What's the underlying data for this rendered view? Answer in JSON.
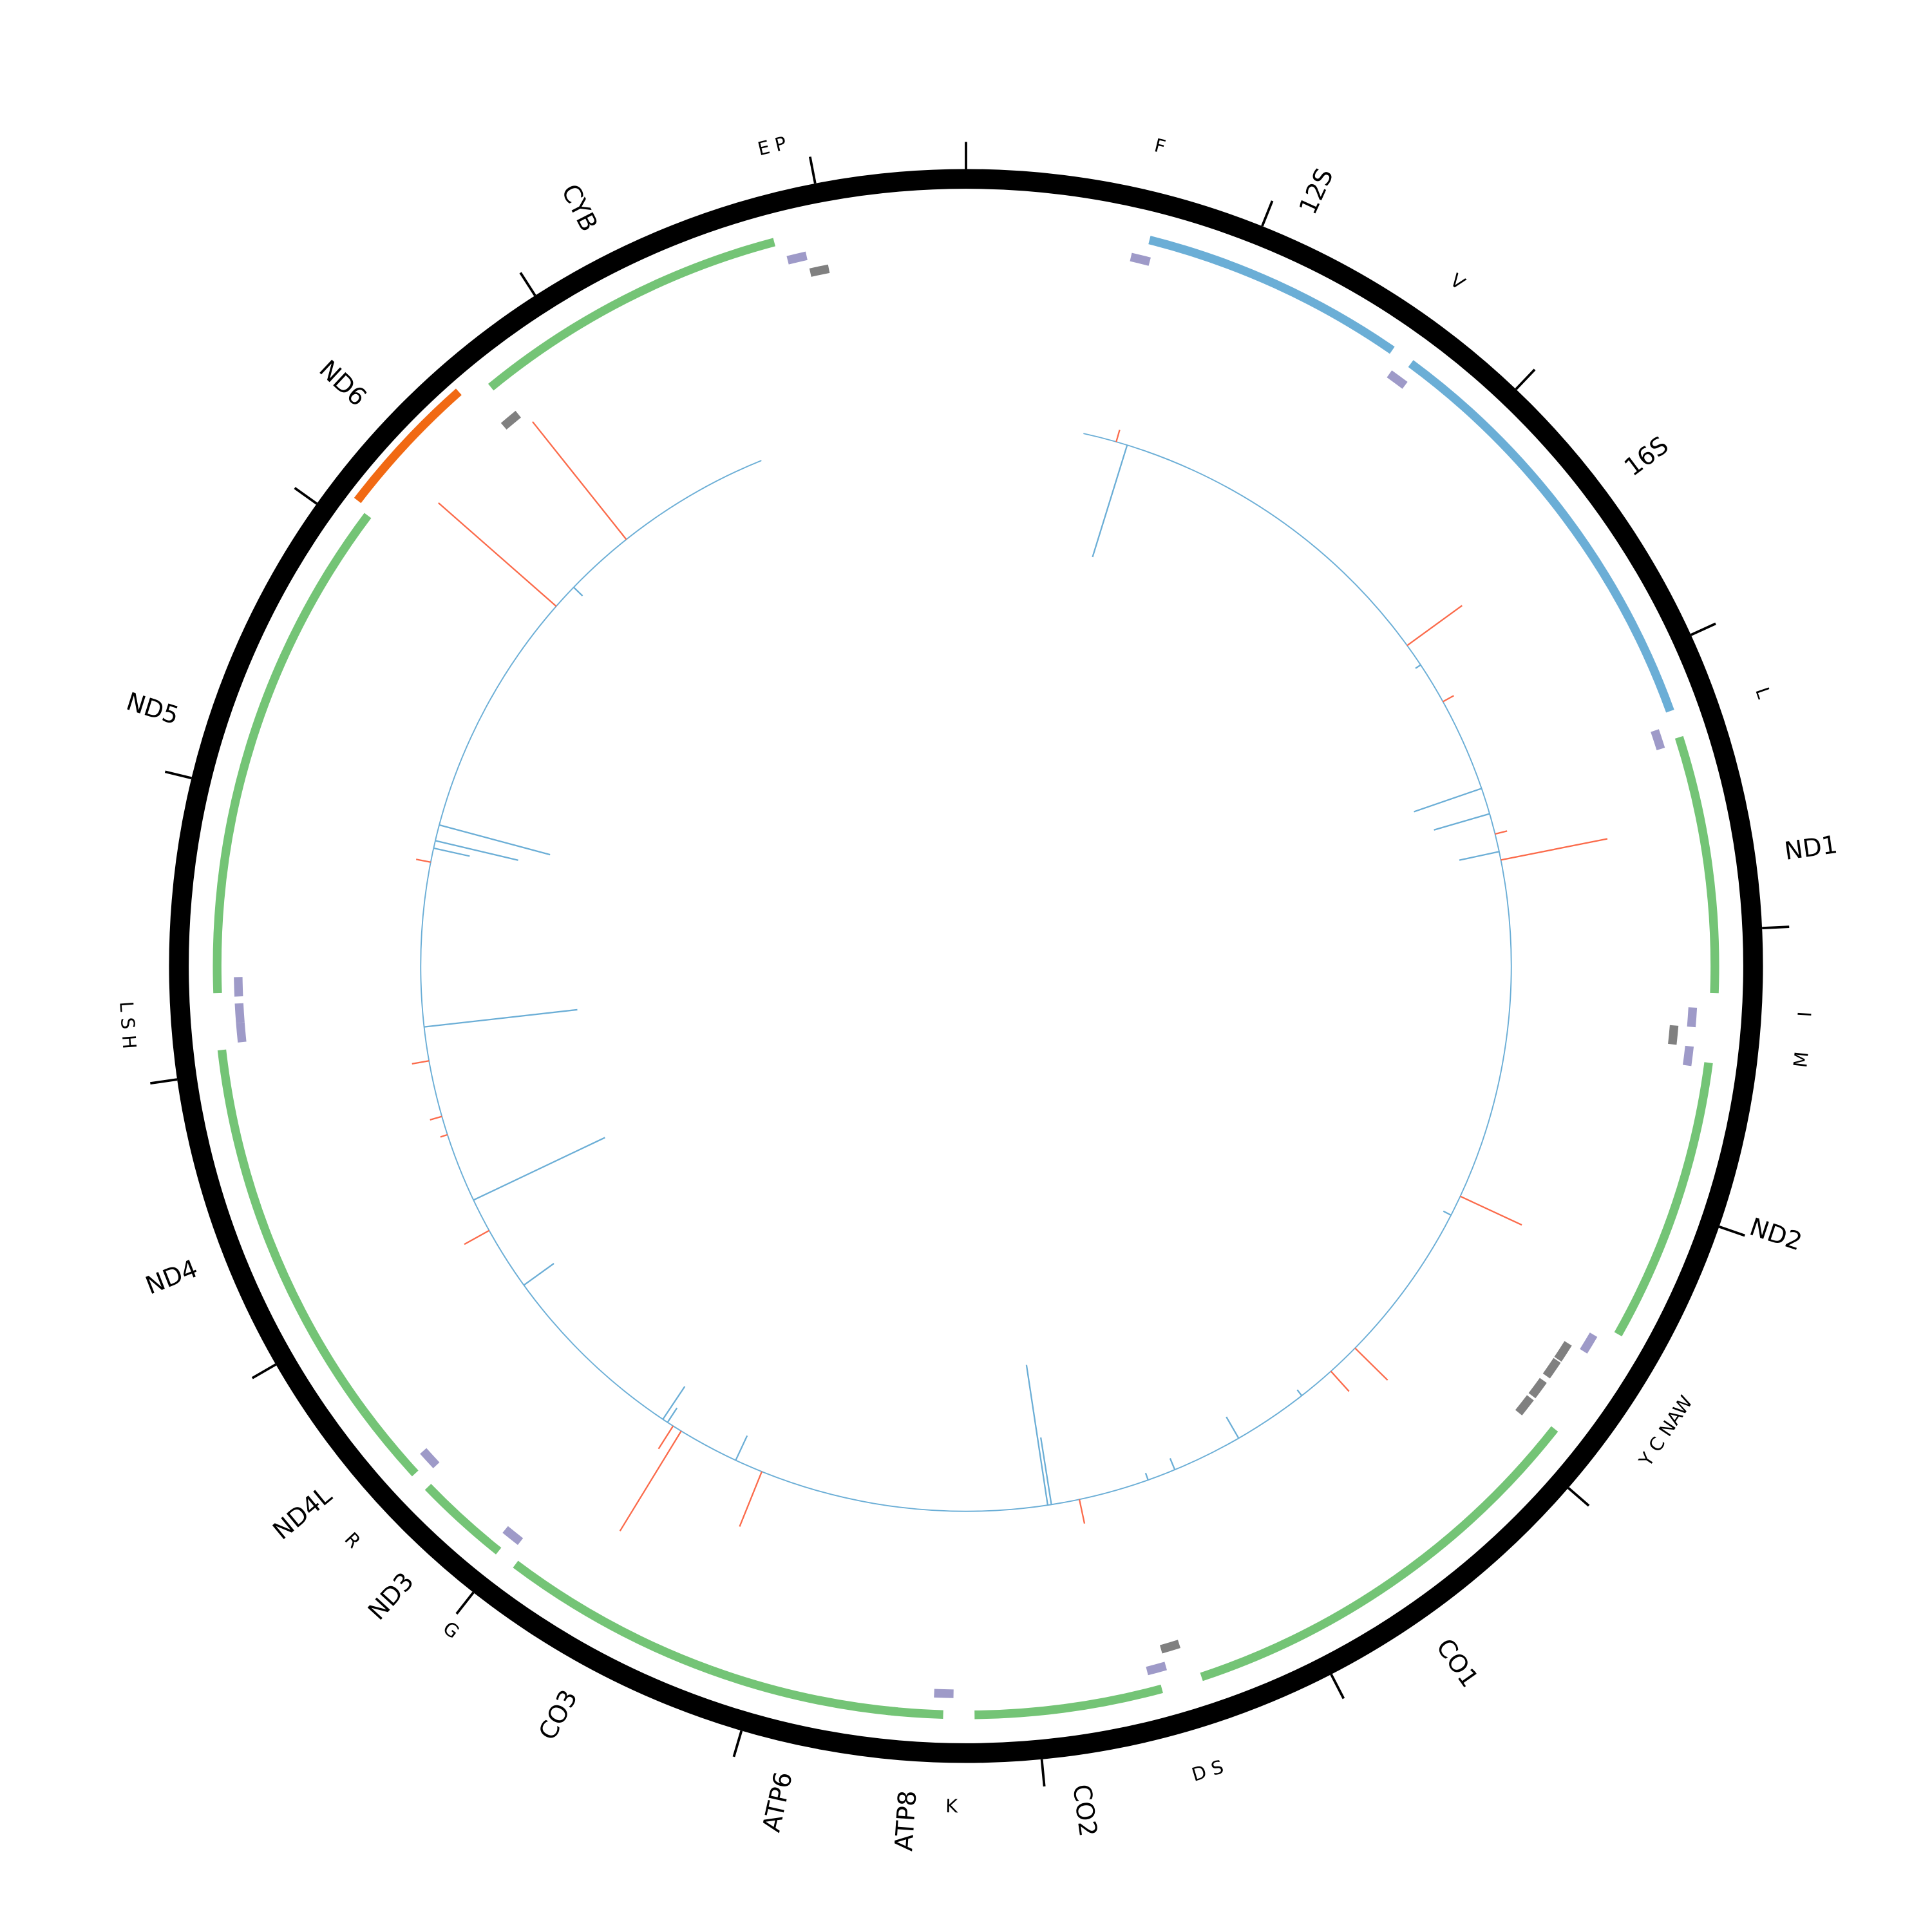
{
  "chart_data": {
    "type": "circular-genome-map",
    "genome_length": 16500,
    "tick_interval": 1000,
    "colors": {
      "backbone": "#000000",
      "protein_plus": "#74c476",
      "rRNA_plus": "#6baed6",
      "gene_minus": "#f16913",
      "tRNA_plus": "#9e9ac8",
      "tRNA_minus": "#808080",
      "bar_positive": "#fb6a4a",
      "bar_negative": "#6baed6",
      "track_baseline": "#6baed6"
    },
    "genes": [
      {
        "name": "12S",
        "start": 650,
        "end": 1590,
        "strand": "+",
        "type": "rRNA"
      },
      {
        "name": "16S",
        "start": 1670,
        "end": 3213,
        "strand": "+",
        "type": "rRNA"
      },
      {
        "name": "ND1",
        "start": 3310,
        "end": 4220,
        "strand": "+",
        "type": "protein"
      },
      {
        "name": "ND2",
        "start": 4465,
        "end": 5475,
        "strand": "+",
        "type": "protein"
      },
      {
        "name": "CO1",
        "start": 5875,
        "end": 7410,
        "strand": "+",
        "type": "protein"
      },
      {
        "name": "CO2",
        "start": 7555,
        "end": 8220,
        "strand": "+",
        "type": "protein"
      },
      {
        "name": "ATP8",
        "start": 8330,
        "end": 8530,
        "strand": "+",
        "type": "protein"
      },
      {
        "name": "ATP6",
        "start": 8490,
        "end": 9165,
        "strand": "+",
        "type": "protein"
      },
      {
        "name": "CO3",
        "start": 9165,
        "end": 9945,
        "strand": "+",
        "type": "protein"
      },
      {
        "name": "ND3",
        "start": 10020,
        "end": 10355,
        "strand": "+",
        "type": "protein"
      },
      {
        "name": "ND4L",
        "start": 10420,
        "end": 10700,
        "strand": "+",
        "type": "protein"
      },
      {
        "name": "ND4",
        "start": 10700,
        "end": 12080,
        "strand": "+",
        "type": "protein"
      },
      {
        "name": "ND5",
        "start": 12280,
        "end": 14070,
        "strand": "+",
        "type": "protein"
      },
      {
        "name": "ND6",
        "start": 14090,
        "end": 14600,
        "strand": "-",
        "type": "protein"
      },
      {
        "name": "CYB",
        "start": 14695,
        "end": 15820,
        "strand": "+",
        "type": "protein"
      }
    ],
    "tRNAs": [
      {
        "pos": 600,
        "strand": "+"
      },
      {
        "pos": 1630,
        "strand": "+"
      },
      {
        "pos": 3260,
        "strand": "+"
      },
      {
        "pos": 4275,
        "strand": "+"
      },
      {
        "pos": 4345,
        "strand": "-"
      },
      {
        "pos": 4415,
        "strand": "+"
      },
      {
        "pos": 5520,
        "strand": "+"
      },
      {
        "pos": 5595,
        "strand": "-"
      },
      {
        "pos": 5670,
        "strand": "-"
      },
      {
        "pos": 5760,
        "strand": "-"
      },
      {
        "pos": 5840,
        "strand": "-"
      },
      {
        "pos": 7450,
        "strand": "-"
      },
      {
        "pos": 7520,
        "strand": "+"
      },
      {
        "pos": 8295,
        "strand": "+"
      },
      {
        "pos": 9980,
        "strand": "+"
      },
      {
        "pos": 10390,
        "strand": "+"
      },
      {
        "pos": 12100,
        "strand": "+"
      },
      {
        "pos": 12170,
        "strand": "+"
      },
      {
        "pos": 12265,
        "strand": "+"
      },
      {
        "pos": 14640,
        "strand": "-"
      },
      {
        "pos": 15850,
        "strand": "+"
      },
      {
        "pos": 15920,
        "strand": "-"
      }
    ],
    "tRNA_labels": [
      {
        "text": "F",
        "pos": 610
      },
      {
        "text": "V",
        "pos": 1636
      },
      {
        "text": "L",
        "pos": 3258
      },
      {
        "text": "I",
        "pos": 4276
      },
      {
        "text": "M",
        "pos": 4418
      },
      {
        "text": "Y C NAW",
        "pos": 5665
      },
      {
        "text": "D S",
        "pos": 7484
      },
      {
        "text": "K",
        "pos": 8295
      },
      {
        "text": "G",
        "pos": 9982
      },
      {
        "text": "R",
        "pos": 10399
      },
      {
        "text": "L S H",
        "pos": 12190
      },
      {
        "text": "E P",
        "pos": 15890
      }
    ],
    "track": {
      "start": 570,
      "end": 15490,
      "bars": [
        {
          "pos": 788,
          "value": -0.95
        },
        {
          "pos": 2589,
          "value": -0.05
        },
        {
          "pos": 3254,
          "value": -0.58
        },
        {
          "pos": 3382,
          "value": -0.47
        },
        {
          "pos": 3570,
          "value": -0.33
        },
        {
          "pos": 14391,
          "value": -0.1
        },
        {
          "pos": 13062,
          "value": -0.93
        },
        {
          "pos": 12984,
          "value": -0.69
        },
        {
          "pos": 12947,
          "value": -0.3
        },
        {
          "pos": 12081,
          "value": -1.25
        },
        {
          "pos": 11210,
          "value": -1.18
        },
        {
          "pos": 10733,
          "value": -0.3
        },
        {
          "pos": 9798,
          "value": -0.32
        },
        {
          "pos": 9771,
          "value": -0.14
        },
        {
          "pos": 9395,
          "value": -0.22
        },
        {
          "pos": 7855,
          "value": -1.15
        },
        {
          "pos": 7837,
          "value": -0.55
        },
        {
          "pos": 7356,
          "value": -0.06
        },
        {
          "pos": 7218,
          "value": -0.1
        },
        {
          "pos": 6875,
          "value": -0.2
        },
        {
          "pos": 6508,
          "value": -0.06
        },
        {
          "pos": 5371,
          "value": -0.07
        },
        {
          "pos": 733,
          "value": 0.1
        },
        {
          "pos": 2475,
          "value": 0.55
        },
        {
          "pos": 2796,
          "value": 0.1
        },
        {
          "pos": 3483,
          "value": 0.1
        },
        {
          "pos": 3611,
          "value": 0.88
        },
        {
          "pos": 5270,
          "value": 0.55
        },
        {
          "pos": 6164,
          "value": 0.37
        },
        {
          "pos": 6325,
          "value": 0.22
        },
        {
          "pos": 7700,
          "value": 0.2
        },
        {
          "pos": 9258,
          "value": 0.48
        },
        {
          "pos": 9693,
          "value": 0.95
        },
        {
          "pos": 9739,
          "value": 0.22
        },
        {
          "pos": 14734,
          "value": 1.22
        },
        {
          "pos": 14267,
          "value": 1.27
        },
        {
          "pos": 12878,
          "value": 0.12
        },
        {
          "pos": 11916,
          "value": 0.14
        },
        {
          "pos": 11641,
          "value": 0.1
        },
        {
          "pos": 11549,
          "value": 0.06
        },
        {
          "pos": 11045,
          "value": 0.23
        }
      ]
    }
  }
}
